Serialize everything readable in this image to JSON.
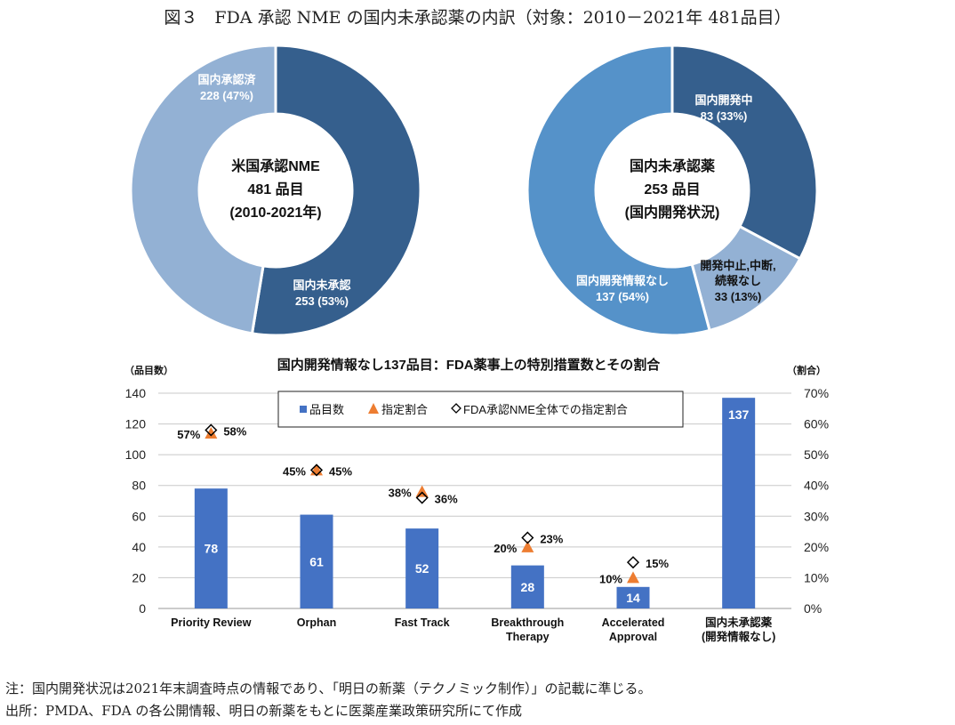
{
  "figure_title": "図３　FDA 承認 NME の国内未承認薬の内訳（対象：2010－2021年 481品目）",
  "chart_data": [
    {
      "type": "pie",
      "center_label": [
        "米国承認NME",
        "481 品目",
        "(2010-2021年)"
      ],
      "slices": [
        {
          "label": "国内未承認",
          "value": 253,
          "percent_label": "253 (53%)",
          "color": "#355f8d"
        },
        {
          "label": "国内承認済",
          "value": 228,
          "percent_label": "228 (47%)",
          "color": "#93b1d4"
        }
      ]
    },
    {
      "type": "pie",
      "center_label": [
        "国内未承認薬",
        "253 品目",
        "(国内開発状況)"
      ],
      "slices": [
        {
          "label": "国内開発中",
          "value": 83,
          "percent_label": "83 (33%)",
          "color": "#355f8d"
        },
        {
          "label": "開発中止,中断,続報なし",
          "label_lines": [
            "開発中止,中断,",
            "続報なし"
          ],
          "value": 33,
          "percent_label": "33 (13%)",
          "color": "#93b1d4"
        },
        {
          "label": "国内開発情報なし",
          "value": 137,
          "percent_label": "137 (54%)",
          "color": "#5592c9"
        }
      ]
    },
    {
      "type": "bar",
      "title": "国内開発情報なし137品目：FDA薬事上の特別措置数とその割合",
      "ylabel": "（品目数）",
      "y2label": "（割合）",
      "ylim": [
        0,
        140
      ],
      "yticks": [
        0,
        20,
        40,
        60,
        80,
        100,
        120,
        140
      ],
      "y2lim": [
        0,
        70
      ],
      "y2ticks": [
        "0%",
        "10%",
        "20%",
        "30%",
        "40%",
        "50%",
        "60%",
        "70%"
      ],
      "grid": true,
      "legend_position": "top-center",
      "categories": [
        [
          "Priority Review"
        ],
        [
          "Orphan"
        ],
        [
          "Fast Track"
        ],
        [
          "Breakthrough",
          "Therapy"
        ],
        [
          "Accelerated",
          "Approval"
        ],
        [
          "国内未承認薬",
          "(開発情報なし)"
        ]
      ],
      "series": [
        {
          "name": "品目数",
          "type": "bar",
          "axis": "left",
          "color": "#4472c4",
          "values": [
            78,
            61,
            52,
            28,
            14,
            137
          ]
        },
        {
          "name": "指定割合",
          "type": "marker-triangle",
          "axis": "right",
          "color": "#ed7d31",
          "values": [
            57,
            45,
            38,
            20,
            10,
            null
          ],
          "labels": [
            "57%",
            "45%",
            "38%",
            "20%",
            "10%",
            null
          ]
        },
        {
          "name": "FDA承認NME全体での指定割合",
          "type": "marker-diamond",
          "axis": "right",
          "color": "#000000",
          "values": [
            58,
            45,
            36,
            23,
            15,
            null
          ],
          "labels": [
            "58%",
            "45%",
            "36%",
            "23%",
            "15%",
            null
          ]
        }
      ]
    }
  ],
  "notes": [
    "注：国内開発状況は2021年末調査時点の情報であり、「明日の新薬（テクノミック制作）」の記載に準じる。",
    "出所：PMDA、FDA の各公開情報、明日の新薬をもとに医薬産業政策研究所にて作成"
  ]
}
